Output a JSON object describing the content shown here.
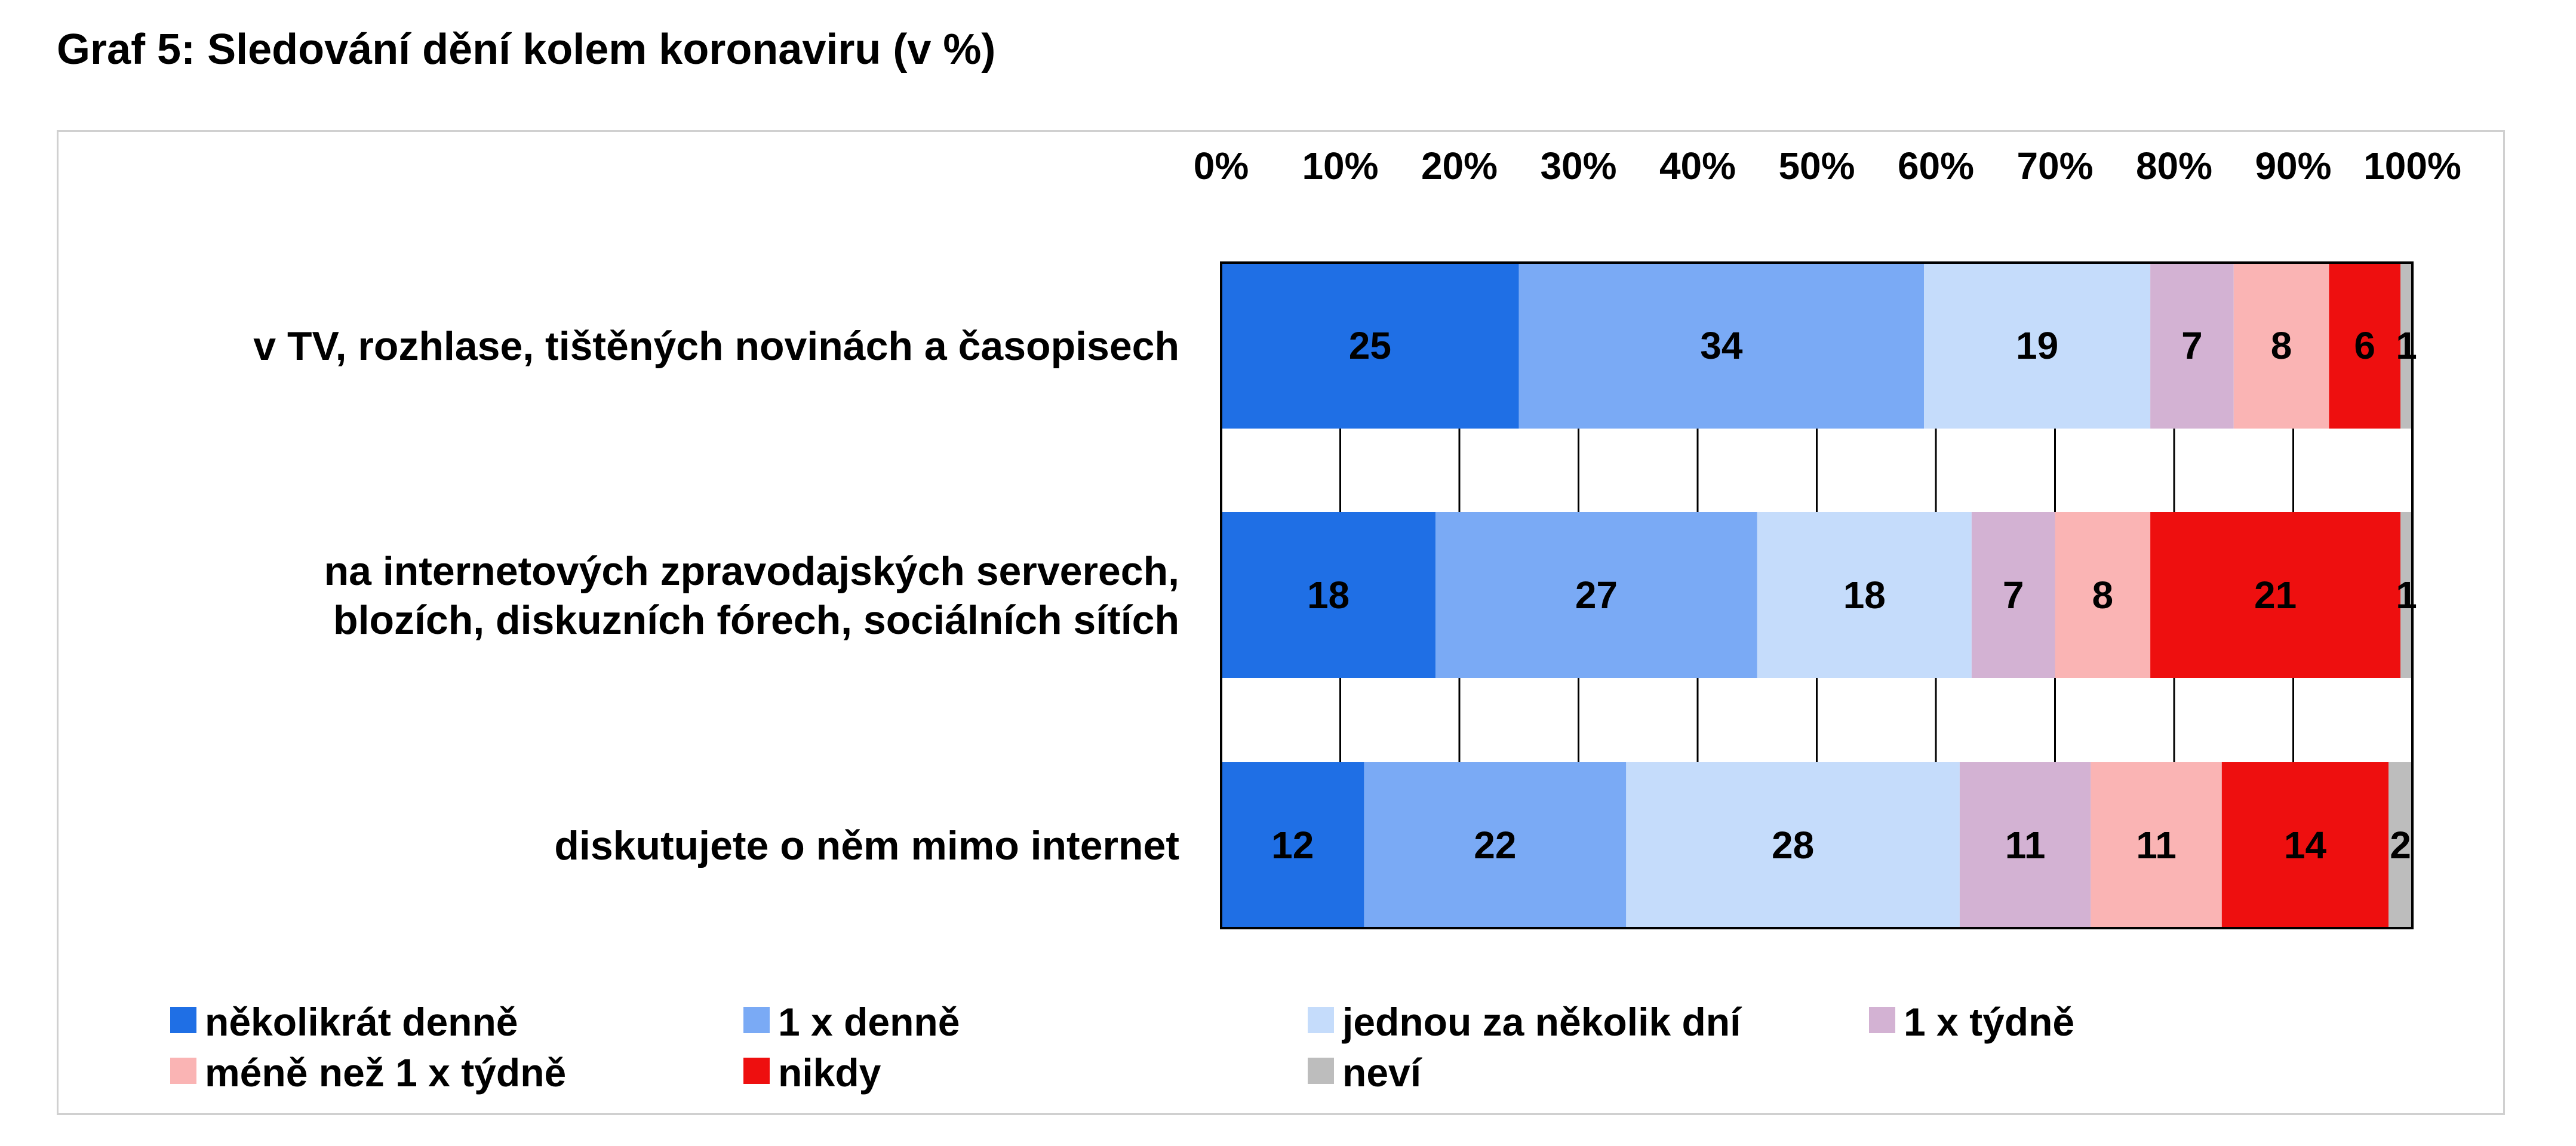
{
  "title": "Graf 5: Sledování dění kolem koronaviru (v %)",
  "chart_data": {
    "type": "bar",
    "orientation": "horizontal",
    "stacked": "percent",
    "title": "Graf 5: Sledování dění kolem koronaviru (v %)",
    "xlim": [
      0,
      100
    ],
    "x_ticks": [
      "0%",
      "10%",
      "20%",
      "30%",
      "40%",
      "50%",
      "60%",
      "70%",
      "80%",
      "90%",
      "100%"
    ],
    "x_axis_position": "top",
    "grid": "vertical",
    "legend_position": "bottom",
    "categories": [
      [
        "v TV, rozhlase, tištěných novinách a časopisech"
      ],
      [
        "na internetových zpravodajských serverech,",
        "blozích, diskuzních fórech, sociálních sítích"
      ],
      [
        "diskutujete o něm mimo internet"
      ]
    ],
    "series": [
      {
        "name": "několikrát denně",
        "color": "#1f6fe5",
        "values": [
          25,
          18,
          12
        ]
      },
      {
        "name": "1 x denně",
        "color": "#7aaaf5",
        "values": [
          34,
          27,
          22
        ]
      },
      {
        "name": "jednou za několik dní",
        "color": "#c5dcfb",
        "values": [
          19,
          18,
          28
        ]
      },
      {
        "name": "1 x týdně",
        "color": "#d3b2d3",
        "values": [
          7,
          7,
          11
        ]
      },
      {
        "name": "méně než 1 x týdně",
        "color": "#fab4b4",
        "values": [
          8,
          8,
          11
        ]
      },
      {
        "name": "nikdy",
        "color": "#ee0f0f",
        "values": [
          6,
          21,
          14
        ]
      },
      {
        "name": "neví",
        "color": "#bdbdbd",
        "values": [
          1,
          1,
          2
        ]
      }
    ]
  }
}
